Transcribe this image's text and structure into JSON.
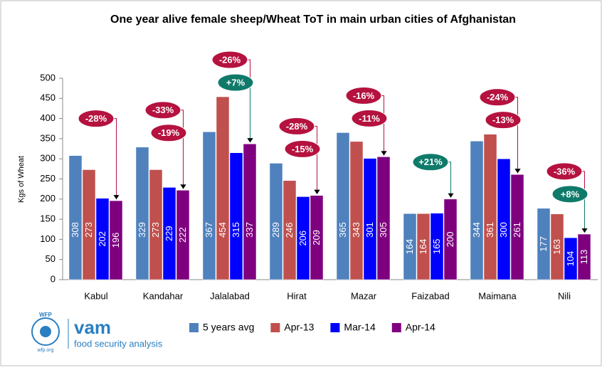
{
  "chart_data": {
    "type": "bar",
    "title": "One year alive female sheep/Wheat ToT in main urban cities of Afghanistan",
    "y_label": "Kgs of Wheat",
    "categories": [
      "Kabul",
      "Kandahar",
      "Jalalabad",
      "Hirat",
      "Mazar",
      "Faizabad",
      "Maimana",
      "Nili"
    ],
    "series": [
      {
        "name": "5 years avg",
        "color": "#4f81bd",
        "values": [
          308,
          329,
          367,
          289,
          365,
          164,
          344,
          177
        ]
      },
      {
        "name": "Apr-13",
        "color": "#c0504d",
        "values": [
          273,
          273,
          454,
          246,
          343,
          164,
          361,
          163
        ]
      },
      {
        "name": "Mar-14",
        "color": "#0000ff",
        "values": [
          202,
          229,
          315,
          206,
          301,
          165,
          300,
          104
        ]
      },
      {
        "name": "Apr-14",
        "color": "#7f007f",
        "values": [
          196,
          222,
          337,
          209,
          305,
          200,
          261,
          113
        ]
      }
    ],
    "ylim": [
      0,
      500
    ],
    "yticks": [
      0,
      50,
      100,
      150,
      200,
      250,
      300,
      350,
      400,
      450,
      500
    ],
    "annotations": [
      {
        "category": 0,
        "text": "-28%",
        "color": "#b5123f"
      },
      {
        "category": 1,
        "text": "-33%",
        "color": "#b5123f"
      },
      {
        "category": 1,
        "text": "-19%",
        "color": "#b5123f"
      },
      {
        "category": 2,
        "text": "-26%",
        "color": "#b5123f"
      },
      {
        "category": 2,
        "text": "+7%",
        "color": "#0f7a6a"
      },
      {
        "category": 3,
        "text": "-28%",
        "color": "#b5123f"
      },
      {
        "category": 3,
        "text": "-15%",
        "color": "#b5123f"
      },
      {
        "category": 4,
        "text": "-16%",
        "color": "#b5123f"
      },
      {
        "category": 4,
        "text": "-11%",
        "color": "#b5123f"
      },
      {
        "category": 5,
        "text": "+21%",
        "color": "#0f7a6a"
      },
      {
        "category": 6,
        "text": "-24%",
        "color": "#b5123f"
      },
      {
        "category": 6,
        "text": "-13%",
        "color": "#b5123f"
      },
      {
        "category": 7,
        "text": "-36%",
        "color": "#b5123f"
      },
      {
        "category": 7,
        "text": "+8%",
        "color": "#0f7a6a"
      }
    ]
  },
  "logo": {
    "org": "WFP",
    "name": "vam",
    "tagline": "food security analysis",
    "site": "wfp.org"
  }
}
